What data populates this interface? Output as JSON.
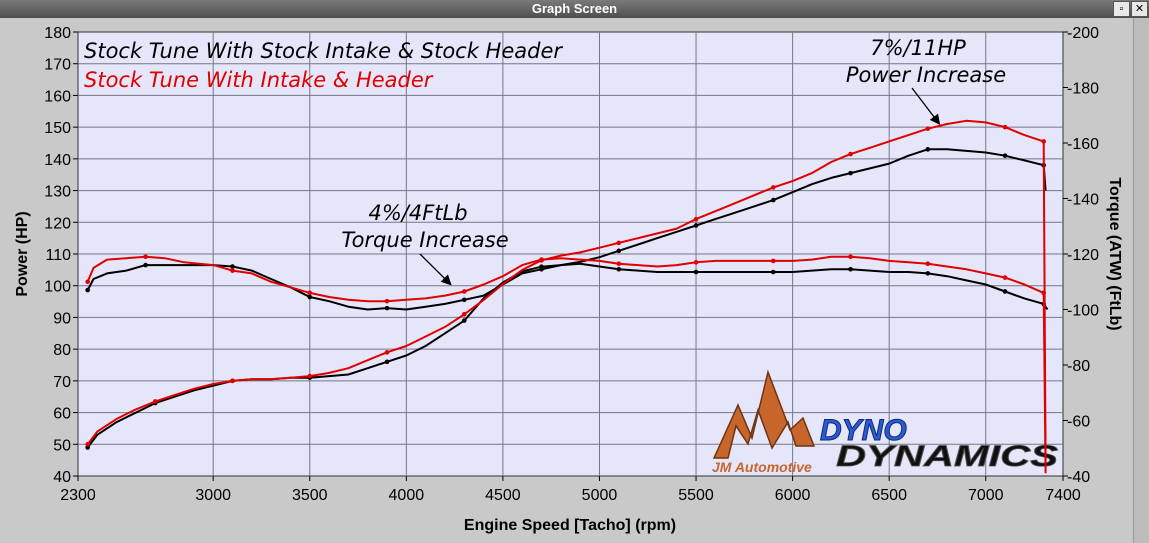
{
  "window": {
    "title": "Graph Screen",
    "btn_restore": "▫",
    "btn_close": "✕"
  },
  "colors": {
    "plot_bg": "#e6e6fa",
    "grid": "#777788",
    "stock": "#000000",
    "modified": "#e00000",
    "logo_orange": "#c7652a",
    "logo_blue": "#2a5bd7"
  },
  "logo": {
    "jm_text": "JM Automotive",
    "dyno_text": "DYNO",
    "dynamics_text": "DYNAMICS"
  },
  "chart_data": {
    "type": "line",
    "title": "",
    "xlabel": "Engine Speed [Tacho] (rpm)",
    "ylabel_left": "Power (HP)",
    "ylabel_right": "Torque (ATW) (FtLb)",
    "xlim": [
      2300,
      7400
    ],
    "ylim_left": [
      40,
      180
    ],
    "ylim_right": [
      40,
      200
    ],
    "x_ticks": [
      2300,
      3000,
      3500,
      4000,
      4500,
      5000,
      5500,
      6000,
      6500,
      7000,
      7400
    ],
    "y_ticks_left": [
      40,
      50,
      60,
      70,
      80,
      90,
      100,
      110,
      120,
      130,
      140,
      150,
      160,
      170,
      180
    ],
    "y_ticks_right": [
      40,
      60,
      80,
      100,
      120,
      140,
      160,
      180,
      200
    ],
    "grid": true,
    "legend": [
      {
        "name": "Stock Tune With Stock Intake & Stock Header",
        "color": "#000000"
      },
      {
        "name": "Stock Tune With Intake & Header",
        "color": "#e00000"
      }
    ],
    "annotations": [
      {
        "lines": [
          "7%/11HP",
          "Power Increase"
        ],
        "arrow_to": {
          "x": 6760,
          "y": 151,
          "axis": "left"
        }
      },
      {
        "lines": [
          "4%/4FtLb",
          "Torque Increase"
        ],
        "arrow_to": {
          "x": 4230,
          "y": 109,
          "axis": "right"
        }
      }
    ],
    "series": [
      {
        "name": "Stock Tune With Stock Intake & Stock Header",
        "kind": "power",
        "axis": "left",
        "color": "#000000",
        "x": [
          2350,
          2400,
          2500,
          2600,
          2700,
          2800,
          2900,
          3000,
          3100,
          3200,
          3300,
          3400,
          3500,
          3600,
          3700,
          3800,
          3900,
          4000,
          4100,
          4200,
          4300,
          4400,
          4500,
          4600,
          4700,
          4800,
          4900,
          5000,
          5100,
          5200,
          5300,
          5400,
          5500,
          5600,
          5700,
          5800,
          5900,
          6000,
          6100,
          6200,
          6300,
          6400,
          6500,
          6600,
          6700,
          6800,
          6900,
          7000,
          7100,
          7200,
          7300,
          7310
        ],
        "y": [
          49,
          53,
          57,
          60,
          63,
          65,
          67,
          68.5,
          70,
          70.5,
          70.5,
          71,
          71,
          71.5,
          72,
          74,
          76,
          78,
          81,
          85,
          89,
          96,
          101,
          104.5,
          106,
          106.5,
          107.5,
          109,
          111,
          113,
          115,
          117,
          119,
          121,
          123,
          125,
          127,
          129.5,
          132,
          134,
          135.5,
          137,
          138.5,
          141,
          143,
          143,
          142.5,
          142,
          141,
          139.5,
          138,
          130
        ]
      },
      {
        "name": "Stock Tune With Stock Intake & Stock Header",
        "kind": "torque",
        "axis": "right",
        "color": "#000000",
        "x": [
          2350,
          2380,
          2450,
          2550,
          2650,
          2750,
          2850,
          3000,
          3100,
          3200,
          3300,
          3400,
          3500,
          3600,
          3700,
          3800,
          3900,
          4000,
          4100,
          4200,
          4300,
          4400,
          4500,
          4600,
          4700,
          4800,
          4900,
          5000,
          5100,
          5200,
          5300,
          5400,
          5500,
          5600,
          5700,
          5800,
          5900,
          6000,
          6100,
          6200,
          6300,
          6400,
          6500,
          6600,
          6700,
          6800,
          6900,
          7000,
          7100,
          7200,
          7300,
          7320
        ],
        "y": [
          107,
          111,
          113,
          114,
          116,
          116,
          116,
          116,
          115.5,
          114,
          111,
          108,
          104.5,
          103,
          101,
          100,
          100.5,
          100,
          101,
          102,
          103.5,
          105,
          109,
          113,
          114.5,
          116,
          116.5,
          115.5,
          114.5,
          114,
          113.5,
          113.5,
          113.5,
          113.5,
          113.5,
          113.5,
          113.5,
          113.5,
          114,
          114.5,
          114.5,
          114,
          113.5,
          113.5,
          113,
          112,
          110.5,
          109,
          106.5,
          104,
          102,
          100
        ]
      },
      {
        "name": "Stock Tune With Intake & Header",
        "kind": "power",
        "axis": "left",
        "color": "#e00000",
        "x": [
          2350,
          2400,
          2500,
          2600,
          2700,
          2800,
          2900,
          3000,
          3100,
          3200,
          3300,
          3400,
          3500,
          3600,
          3700,
          3800,
          3900,
          4000,
          4100,
          4200,
          4300,
          4400,
          4500,
          4600,
          4700,
          4800,
          4900,
          5000,
          5100,
          5200,
          5300,
          5400,
          5500,
          5600,
          5700,
          5800,
          5900,
          6000,
          6100,
          6200,
          6300,
          6400,
          6500,
          6600,
          6700,
          6800,
          6900,
          7000,
          7100,
          7200,
          7300,
          7310
        ],
        "y": [
          50,
          54,
          58,
          61,
          63.5,
          65.5,
          67.5,
          69,
          70,
          70.5,
          70.5,
          71,
          71.5,
          72.5,
          74,
          76.5,
          79,
          81,
          84,
          87,
          91,
          95.5,
          100.5,
          105,
          108,
          109.5,
          110.5,
          112,
          113.5,
          115,
          116.5,
          118,
          121,
          123.5,
          126,
          128.5,
          131,
          133,
          135.5,
          139,
          141.5,
          143.5,
          145.5,
          147.5,
          149.5,
          151,
          152,
          151.5,
          150,
          147.5,
          145.5,
          44
        ]
      },
      {
        "name": "Stock Tune With Intake & Header",
        "kind": "torque",
        "axis": "right",
        "color": "#e00000",
        "x": [
          2350,
          2380,
          2450,
          2550,
          2650,
          2750,
          2850,
          3000,
          3100,
          3200,
          3300,
          3400,
          3500,
          3600,
          3700,
          3800,
          3900,
          4000,
          4100,
          4200,
          4300,
          4400,
          4500,
          4600,
          4700,
          4800,
          4900,
          5000,
          5100,
          5200,
          5300,
          5400,
          5500,
          5600,
          5700,
          5800,
          5900,
          6000,
          6100,
          6200,
          6300,
          6400,
          6500,
          6600,
          6700,
          6800,
          6900,
          7000,
          7100,
          7200,
          7300,
          7310
        ],
        "y": [
          110,
          115,
          118,
          118.5,
          119,
          118.5,
          117,
          116,
          114,
          113,
          110,
          108,
          106,
          104.5,
          103.5,
          103,
          103,
          103.5,
          104,
          105,
          106.5,
          109,
          112,
          116,
          118,
          118.5,
          118,
          117.5,
          116.5,
          116,
          115.5,
          116,
          117,
          117.5,
          117.5,
          117.5,
          117.5,
          117.5,
          118,
          119,
          119,
          118.5,
          117.5,
          117,
          116.5,
          115.5,
          114.5,
          113,
          111.5,
          109,
          106,
          41
        ]
      }
    ]
  }
}
